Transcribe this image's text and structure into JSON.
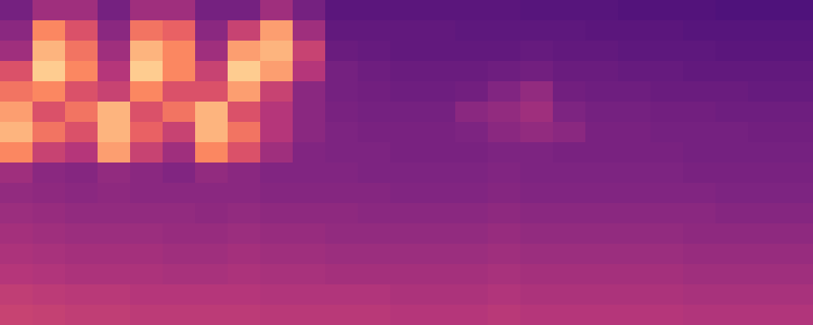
{
  "chart_data": {
    "type": "heatmap",
    "tick_labels": false,
    "zlim": [
      0,
      1
    ],
    "cells": [
      [
        0.35,
        0.45,
        0.45,
        0.35,
        0.45,
        0.45,
        0.35,
        0.35,
        0.45,
        0.35,
        0.28,
        0.28,
        0.28,
        0.28,
        0.28,
        0.28,
        0.27,
        0.27,
        0.27,
        0.26,
        0.26,
        0.26,
        0.25,
        0.25,
        0.25
      ],
      [
        0.4,
        0.75,
        0.6,
        0.4,
        0.7,
        0.65,
        0.4,
        0.55,
        0.8,
        0.45,
        0.3,
        0.3,
        0.3,
        0.3,
        0.29,
        0.29,
        0.29,
        0.29,
        0.28,
        0.28,
        0.28,
        0.27,
        0.27,
        0.27,
        0.27
      ],
      [
        0.45,
        0.85,
        0.7,
        0.45,
        0.85,
        0.75,
        0.45,
        0.8,
        0.85,
        0.55,
        0.32,
        0.31,
        0.3,
        0.3,
        0.3,
        0.3,
        0.31,
        0.3,
        0.3,
        0.29,
        0.29,
        0.29,
        0.28,
        0.28,
        0.28
      ],
      [
        0.6,
        0.9,
        0.75,
        0.5,
        0.9,
        0.75,
        0.55,
        0.9,
        0.8,
        0.5,
        0.35,
        0.33,
        0.32,
        0.32,
        0.32,
        0.33,
        0.34,
        0.32,
        0.32,
        0.31,
        0.31,
        0.3,
        0.3,
        0.3,
        0.3
      ],
      [
        0.7,
        0.75,
        0.6,
        0.55,
        0.75,
        0.6,
        0.6,
        0.8,
        0.55,
        0.4,
        0.35,
        0.34,
        0.33,
        0.33,
        0.34,
        0.38,
        0.42,
        0.34,
        0.33,
        0.33,
        0.32,
        0.32,
        0.32,
        0.31,
        0.31
      ],
      [
        0.8,
        0.6,
        0.7,
        0.85,
        0.6,
        0.7,
        0.85,
        0.6,
        0.5,
        0.4,
        0.36,
        0.35,
        0.35,
        0.35,
        0.4,
        0.42,
        0.45,
        0.37,
        0.35,
        0.35,
        0.34,
        0.34,
        0.33,
        0.33,
        0.33
      ],
      [
        0.85,
        0.7,
        0.6,
        0.85,
        0.65,
        0.55,
        0.85,
        0.7,
        0.5,
        0.4,
        0.37,
        0.36,
        0.36,
        0.36,
        0.37,
        0.4,
        0.42,
        0.4,
        0.36,
        0.36,
        0.35,
        0.35,
        0.35,
        0.34,
        0.34
      ],
      [
        0.75,
        0.55,
        0.5,
        0.8,
        0.55,
        0.45,
        0.75,
        0.6,
        0.45,
        0.38,
        0.37,
        0.37,
        0.36,
        0.36,
        0.36,
        0.37,
        0.37,
        0.36,
        0.36,
        0.36,
        0.36,
        0.35,
        0.35,
        0.35,
        0.35
      ],
      [
        0.45,
        0.4,
        0.39,
        0.42,
        0.4,
        0.38,
        0.42,
        0.4,
        0.38,
        0.38,
        0.38,
        0.37,
        0.37,
        0.37,
        0.37,
        0.38,
        0.37,
        0.37,
        0.37,
        0.37,
        0.37,
        0.36,
        0.36,
        0.36,
        0.36
      ],
      [
        0.42,
        0.41,
        0.4,
        0.41,
        0.4,
        0.4,
        0.4,
        0.4,
        0.39,
        0.39,
        0.39,
        0.39,
        0.38,
        0.38,
        0.38,
        0.39,
        0.38,
        0.38,
        0.38,
        0.38,
        0.38,
        0.38,
        0.37,
        0.37,
        0.37
      ],
      [
        0.44,
        0.43,
        0.42,
        0.42,
        0.42,
        0.42,
        0.41,
        0.42,
        0.41,
        0.41,
        0.41,
        0.4,
        0.4,
        0.4,
        0.4,
        0.41,
        0.4,
        0.4,
        0.4,
        0.4,
        0.4,
        0.4,
        0.39,
        0.39,
        0.39
      ],
      [
        0.46,
        0.45,
        0.44,
        0.44,
        0.44,
        0.43,
        0.43,
        0.44,
        0.43,
        0.43,
        0.42,
        0.42,
        0.42,
        0.42,
        0.42,
        0.43,
        0.42,
        0.42,
        0.42,
        0.42,
        0.42,
        0.41,
        0.41,
        0.41,
        0.41
      ],
      [
        0.48,
        0.47,
        0.46,
        0.46,
        0.46,
        0.45,
        0.45,
        0.46,
        0.45,
        0.45,
        0.44,
        0.44,
        0.44,
        0.44,
        0.44,
        0.45,
        0.44,
        0.44,
        0.44,
        0.44,
        0.44,
        0.43,
        0.43,
        0.43,
        0.43
      ],
      [
        0.5,
        0.49,
        0.48,
        0.48,
        0.48,
        0.47,
        0.47,
        0.48,
        0.47,
        0.47,
        0.46,
        0.46,
        0.46,
        0.46,
        0.46,
        0.47,
        0.46,
        0.46,
        0.46,
        0.46,
        0.46,
        0.45,
        0.45,
        0.45,
        0.45
      ],
      [
        0.53,
        0.52,
        0.51,
        0.51,
        0.5,
        0.5,
        0.5,
        0.5,
        0.49,
        0.49,
        0.49,
        0.49,
        0.48,
        0.48,
        0.48,
        0.49,
        0.48,
        0.48,
        0.48,
        0.48,
        0.48,
        0.47,
        0.47,
        0.47,
        0.47
      ],
      [
        0.55,
        0.54,
        0.53,
        0.53,
        0.52,
        0.52,
        0.52,
        0.52,
        0.51,
        0.51,
        0.51,
        0.51,
        0.5,
        0.5,
        0.5,
        0.51,
        0.5,
        0.5,
        0.5,
        0.5,
        0.5,
        0.49,
        0.49,
        0.49,
        0.49
      ]
    ]
  }
}
